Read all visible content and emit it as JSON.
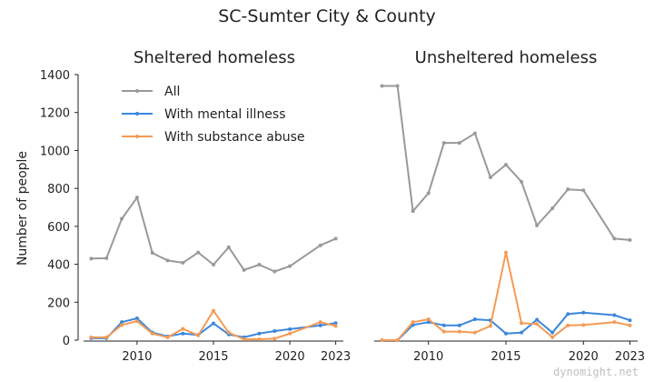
{
  "chart_data": {
    "type": "line",
    "title": "SC-Sumter City & County",
    "ylabel": "Number of people",
    "ylim": [
      0,
      1400
    ],
    "yticks": [
      0,
      200,
      400,
      600,
      800,
      1000,
      1200,
      1400
    ],
    "xlim": [
      2006.5,
      2023.5
    ],
    "xticks": [
      2010,
      2015,
      2020,
      2023
    ],
    "legend": {
      "placement": "top-left",
      "entries": [
        "All",
        "With mental illness",
        "With substance abuse"
      ]
    },
    "colors": {
      "All": "#999999",
      "With mental illness": "#3b87dd",
      "With substance abuse": "#f59a55"
    },
    "panels": [
      {
        "title": "Sheltered homeless",
        "series": [
          {
            "name": "All",
            "x": [
              2007,
              2008,
              2009,
              2010,
              2011,
              2012,
              2013,
              2014,
              2015,
              2016,
              2017,
              2018,
              2019,
              2020,
              2022,
              2023
            ],
            "values": [
              430,
              432,
              640,
              752,
              460,
              420,
              408,
              462,
              398,
              490,
              370,
              398,
              362,
              390,
              500,
              535
            ]
          },
          {
            "name": "With mental illness",
            "x": [
              2007,
              2008,
              2009,
              2010,
              2011,
              2012,
              2013,
              2014,
              2015,
              2016,
              2017,
              2018,
              2019,
              2020,
              2022,
              2023
            ],
            "values": [
              10,
              10,
              95,
              115,
              40,
              20,
              35,
              28,
              88,
              30,
              15,
              35,
              48,
              58,
              78,
              90
            ]
          },
          {
            "name": "With substance abuse",
            "x": [
              2007,
              2008,
              2009,
              2010,
              2011,
              2012,
              2013,
              2014,
              2015,
              2016,
              2017,
              2018,
              2019,
              2020,
              2022,
              2023
            ],
            "values": [
              15,
              15,
              80,
              100,
              35,
              15,
              60,
              25,
              155,
              40,
              5,
              5,
              8,
              35,
              95,
              75
            ]
          }
        ]
      },
      {
        "title": "Unsheltered homeless",
        "series": [
          {
            "name": "All",
            "x": [
              2007,
              2008,
              2009,
              2010,
              2011,
              2012,
              2013,
              2014,
              2015,
              2016,
              2017,
              2018,
              2019,
              2020,
              2022,
              2023
            ],
            "values": [
              1340,
              1340,
              680,
              775,
              1040,
              1040,
              1090,
              858,
              925,
              835,
              605,
              695,
              795,
              790,
              535,
              528
            ]
          },
          {
            "name": "With mental illness",
            "x": [
              2007,
              2008,
              2009,
              2010,
              2011,
              2012,
              2013,
              2014,
              2015,
              2016,
              2017,
              2018,
              2019,
              2020,
              2022,
              2023
            ],
            "values": [
              0,
              0,
              80,
              95,
              78,
              78,
              110,
              105,
              35,
              40,
              108,
              40,
              138,
              145,
              132,
              105
            ]
          },
          {
            "name": "With substance abuse",
            "x": [
              2007,
              2008,
              2009,
              2010,
              2011,
              2012,
              2013,
              2014,
              2015,
              2016,
              2017,
              2018,
              2019,
              2020,
              2022,
              2023
            ],
            "values": [
              0,
              0,
              95,
              110,
              45,
              45,
              40,
              75,
              462,
              90,
              85,
              15,
              78,
              80,
              95,
              78
            ]
          }
        ]
      }
    ]
  },
  "watermark": "dynomight.net"
}
